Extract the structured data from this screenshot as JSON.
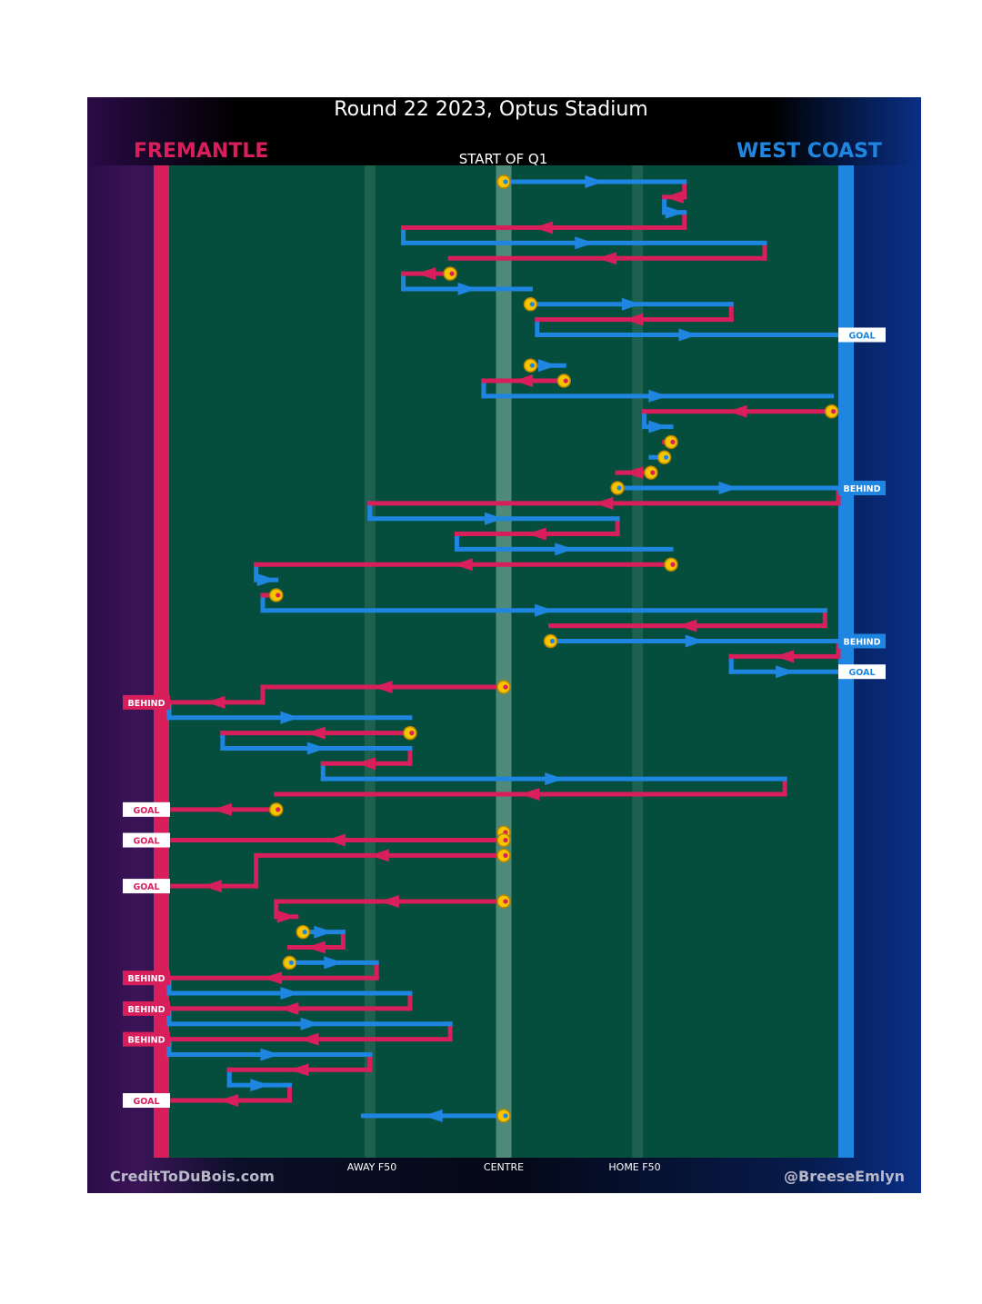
{
  "chart_data": {
    "type": "line",
    "title": "Round 22 2023, Optus Stadium",
    "home_team": "FREMANTLE",
    "away_team": "WEST COAST",
    "period_label": "START OF Q1",
    "x_axis": {
      "range": [
        0,
        100
      ],
      "ticks": [
        {
          "label": "AWAY F50",
          "value": 30
        },
        {
          "label": "CENTRE",
          "value": 50
        },
        {
          "label": "HOME F50",
          "value": 70
        }
      ]
    },
    "colors": {
      "home": "#d81e5b",
      "away": "#1e86e0",
      "ground": "#054d3d",
      "start_marker": "#f7c400"
    },
    "credits": {
      "left": "CreditToDuBois.com",
      "right": "@BreeseEmlyn"
    },
    "chains": [
      {
        "row": 1,
        "team": "away",
        "from": 50,
        "to": 77,
        "start": true,
        "result": null
      },
      {
        "row": 2,
        "team": "home",
        "from": 77,
        "to": 74,
        "start": false,
        "result": null
      },
      {
        "row": 3,
        "team": "away",
        "from": 74,
        "to": 77,
        "start": false,
        "result": null
      },
      {
        "row": 4,
        "team": "home",
        "from": 77,
        "to": 35,
        "start": false,
        "result": null
      },
      {
        "row": 5,
        "team": "away",
        "from": 35,
        "to": 89,
        "start": false,
        "result": null
      },
      {
        "row": 6,
        "team": "home",
        "from": 89,
        "to": 42,
        "start": false,
        "result": null
      },
      {
        "row": 7,
        "team": "home",
        "from": 42,
        "to": 35,
        "start": true,
        "result": null
      },
      {
        "row": 8,
        "team": "away",
        "from": 35,
        "to": 54,
        "start": false,
        "result": null
      },
      {
        "row": 9,
        "team": "away",
        "from": 54,
        "to": 84,
        "start": true,
        "result": null
      },
      {
        "row": 10,
        "team": "home",
        "from": 84,
        "to": 55,
        "start": false,
        "result": null
      },
      {
        "row": 11,
        "team": "away",
        "from": 55,
        "to": 100,
        "start": false,
        "result": "GOAL"
      },
      {
        "row": 13,
        "team": "away",
        "from": 54,
        "to": 59,
        "start": true,
        "result": null
      },
      {
        "row": 14,
        "team": "home",
        "from": 59,
        "to": 47,
        "start": true,
        "result": null
      },
      {
        "row": 15,
        "team": "away",
        "from": 47,
        "to": 99,
        "start": false,
        "result": null
      },
      {
        "row": 16,
        "team": "home",
        "from": 99,
        "to": 71,
        "start": true,
        "result": null
      },
      {
        "row": 17,
        "team": "away",
        "from": 71,
        "to": 75,
        "start": false,
        "result": null
      },
      {
        "row": 18,
        "team": "home",
        "from": 75,
        "to": 74,
        "start": true,
        "result": null
      },
      {
        "row": 19,
        "team": "away",
        "from": 74,
        "to": 72,
        "start": true,
        "result": null
      },
      {
        "row": 20,
        "team": "home",
        "from": 72,
        "to": 67,
        "start": true,
        "result": null
      },
      {
        "row": 21,
        "team": "away",
        "from": 67,
        "to": 100,
        "start": true,
        "result": "BEHIND"
      },
      {
        "row": 22,
        "team": "home",
        "from": 100,
        "to": 30,
        "start": false,
        "result": null
      },
      {
        "row": 23,
        "team": "away",
        "from": 30,
        "to": 67,
        "start": false,
        "result": null
      },
      {
        "row": 24,
        "team": "home",
        "from": 67,
        "to": 43,
        "start": false,
        "result": null
      },
      {
        "row": 25,
        "team": "away",
        "from": 43,
        "to": 75,
        "start": false,
        "result": null
      },
      {
        "row": 26,
        "team": "home",
        "from": 75,
        "to": 13,
        "start": true,
        "result": null
      },
      {
        "row": 27,
        "team": "away",
        "from": 13,
        "to": 16,
        "start": false,
        "result": null
      },
      {
        "row": 28,
        "team": "home",
        "from": 16,
        "to": 14,
        "start": true,
        "result": null
      },
      {
        "row": 29,
        "team": "away",
        "from": 14,
        "to": 98,
        "start": false,
        "result": null
      },
      {
        "row": 30,
        "team": "home",
        "from": 98,
        "to": 57,
        "start": false,
        "result": null
      },
      {
        "row": 31,
        "team": "away",
        "from": 57,
        "to": 100,
        "start": true,
        "result": "BEHIND"
      },
      {
        "row": 32,
        "team": "home",
        "from": 100,
        "to": 84,
        "start": false,
        "result": null
      },
      {
        "row": 33,
        "team": "away",
        "from": 84,
        "to": 100,
        "start": false,
        "result": "GOAL"
      },
      {
        "row": 34,
        "team": "home",
        "from": 50,
        "to": 14,
        "start": true,
        "result": null
      },
      {
        "row": 35,
        "team": "home",
        "from": 14,
        "to": 0,
        "start": false,
        "result": "BEHIND"
      },
      {
        "row": 36,
        "team": "away",
        "from": 0,
        "to": 36,
        "start": false,
        "result": null
      },
      {
        "row": 37,
        "team": "home",
        "from": 36,
        "to": 8,
        "start": true,
        "result": null
      },
      {
        "row": 38,
        "team": "away",
        "from": 8,
        "to": 36,
        "start": false,
        "result": null
      },
      {
        "row": 39,
        "team": "home",
        "from": 36,
        "to": 23,
        "start": false,
        "result": null
      },
      {
        "row": 40,
        "team": "away",
        "from": 23,
        "to": 92,
        "start": false,
        "result": null
      },
      {
        "row": 41,
        "team": "home",
        "from": 92,
        "to": 16,
        "start": false,
        "result": null
      },
      {
        "row": 42,
        "team": "home",
        "from": 16,
        "to": 0,
        "start": true,
        "result": "GOAL"
      },
      {
        "row": 43.5,
        "team": "home",
        "from": 50,
        "to": 50,
        "start": true,
        "result": null
      },
      {
        "row": 44,
        "team": "home",
        "from": 50,
        "to": 0,
        "start": true,
        "result": "GOAL"
      },
      {
        "row": 45,
        "team": "home",
        "from": 50,
        "to": 13,
        "start": true,
        "result": null
      },
      {
        "row": 47,
        "team": "home",
        "from": 13,
        "to": 0,
        "start": false,
        "result": "GOAL"
      },
      {
        "row": 48,
        "team": "home",
        "from": 50,
        "to": 16,
        "start": true,
        "result": null
      },
      {
        "row": 49,
        "team": "home",
        "from": 16,
        "to": 19,
        "start": false,
        "result": null
      },
      {
        "row": 50,
        "team": "away",
        "from": 20,
        "to": 26,
        "start": true,
        "result": null
      },
      {
        "row": 51,
        "team": "home",
        "from": 26,
        "to": 18,
        "start": false,
        "result": null
      },
      {
        "row": 52,
        "team": "away",
        "from": 18,
        "to": 31,
        "start": true,
        "result": null
      },
      {
        "row": 53,
        "team": "home",
        "from": 31,
        "to": 0,
        "start": false,
        "result": "BEHIND"
      },
      {
        "row": 54,
        "team": "away",
        "from": 0,
        "to": 36,
        "start": false,
        "result": null
      },
      {
        "row": 55,
        "team": "home",
        "from": 36,
        "to": 0,
        "start": false,
        "result": "BEHIND"
      },
      {
        "row": 56,
        "team": "away",
        "from": 0,
        "to": 42,
        "start": false,
        "result": null
      },
      {
        "row": 57,
        "team": "home",
        "from": 42,
        "to": 0,
        "start": false,
        "result": "BEHIND"
      },
      {
        "row": 58,
        "team": "away",
        "from": 0,
        "to": 30,
        "start": false,
        "result": null
      },
      {
        "row": 59,
        "team": "home",
        "from": 30,
        "to": 9,
        "start": false,
        "result": null
      },
      {
        "row": 60,
        "team": "away",
        "from": 9,
        "to": 18,
        "start": false,
        "result": null
      },
      {
        "row": 61,
        "team": "home",
        "from": 18,
        "to": 0,
        "start": false,
        "result": "GOAL"
      },
      {
        "row": 62,
        "team": "away",
        "from": 50,
        "to": 29,
        "start": true,
        "result": null
      }
    ]
  }
}
